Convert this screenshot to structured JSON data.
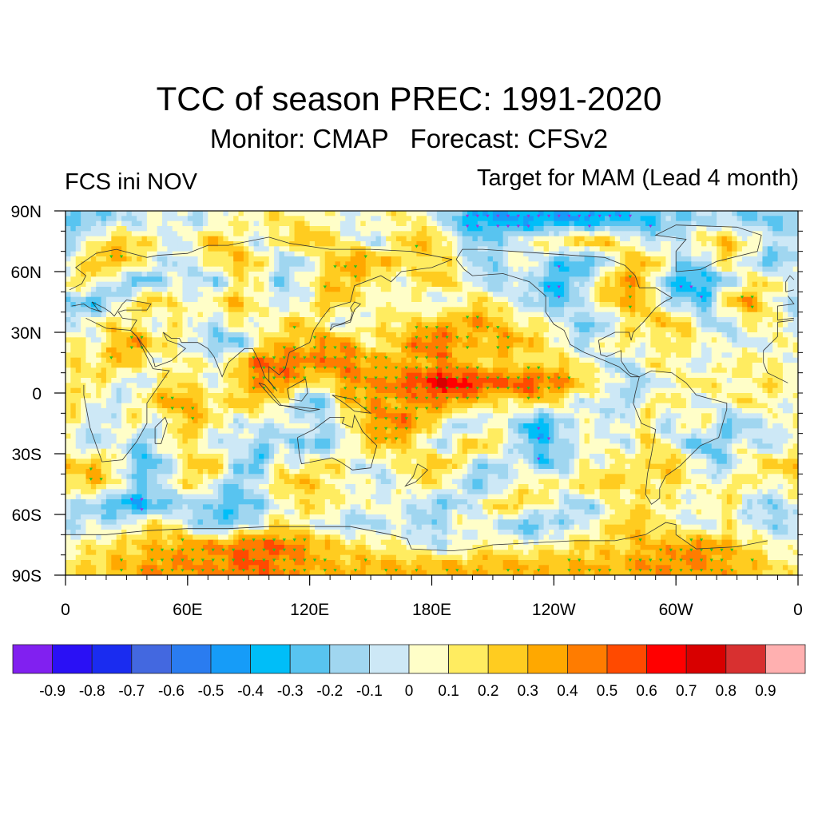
{
  "chart_data": {
    "type": "heatmap",
    "title": "TCC of season PREC: 1991-2020",
    "subtitle": {
      "monitor": "Monitor: CMAP",
      "forecast": "Forecast: CFSv2"
    },
    "left_string": "FCS ini NOV",
    "right_string": "Target for MAM (Lead 4 month)",
    "xlabel": "",
    "ylabel": "",
    "x_range_deg_east": [
      0,
      360
    ],
    "y_range_deg_lat": [
      -90,
      90
    ],
    "x_ticks": [
      {
        "value": 0,
        "label": "0"
      },
      {
        "value": 60,
        "label": "60E"
      },
      {
        "value": 120,
        "label": "120E"
      },
      {
        "value": 180,
        "label": "180E"
      },
      {
        "value": 240,
        "label": "120W"
      },
      {
        "value": 300,
        "label": "60W"
      },
      {
        "value": 360,
        "label": "0"
      }
    ],
    "y_ticks": [
      {
        "value": 90,
        "label": "90N"
      },
      {
        "value": 60,
        "label": "60N"
      },
      {
        "value": 30,
        "label": "30N"
      },
      {
        "value": 0,
        "label": "0"
      },
      {
        "value": -30,
        "label": "30S"
      },
      {
        "value": -60,
        "label": "60S"
      },
      {
        "value": -90,
        "label": "90S"
      }
    ],
    "minor_tick_step_deg": 10,
    "colorbar": {
      "orientation": "horizontal",
      "placement": "bottom",
      "levels": [
        -0.9,
        -0.8,
        -0.7,
        -0.6,
        -0.5,
        -0.4,
        -0.3,
        -0.2,
        -0.1,
        0,
        0.1,
        0.2,
        0.3,
        0.4,
        0.5,
        0.6,
        0.7,
        0.8,
        0.9
      ],
      "level_labels": [
        "-0.9",
        "-0.8",
        "-0.7",
        "-0.6",
        "-0.5",
        "-0.4",
        "-0.3",
        "-0.2",
        "-0.1",
        "0",
        "0.1",
        "0.2",
        "0.3",
        "0.4",
        "0.5",
        "0.6",
        "0.7",
        "0.8",
        "0.9"
      ],
      "colors": [
        "#8120f0",
        "#2a10f5",
        "#1a2cf0",
        "#4368e0",
        "#2a7cf0",
        "#169cf8",
        "#00bef8",
        "#58c4f0",
        "#a0d6f0",
        "#cde8f6",
        "#fffec8",
        "#ffec60",
        "#ffcc20",
        "#ffa800",
        "#ff7c00",
        "#ff4a00",
        "#ff0000",
        "#d80000",
        "#d83030",
        "#ffb0b0"
      ]
    },
    "significance_marker_colors": {
      "positive": "#1ec81e",
      "negative": "#a030e0"
    },
    "grid_resolution_deg": 10,
    "grid_lat_centers": [
      85,
      75,
      65,
      55,
      45,
      35,
      25,
      15,
      5,
      -5,
      -15,
      -25,
      -35,
      -45,
      -55,
      -65,
      -75,
      -85
    ],
    "grid_lon_centers_east": [
      5,
      15,
      25,
      35,
      45,
      55,
      65,
      75,
      85,
      95,
      105,
      115,
      125,
      135,
      145,
      155,
      165,
      175,
      185,
      195,
      205,
      215,
      225,
      235,
      245,
      255,
      265,
      275,
      285,
      295,
      305,
      315,
      325,
      335,
      345,
      355
    ],
    "values_tcc": [
      [
        -0.2,
        -0.2,
        -0.1,
        -0.1,
        0.0,
        0.0,
        -0.1,
        0.0,
        0.1,
        0.1,
        0.2,
        0.1,
        0.1,
        0.0,
        0.0,
        0.1,
        0.1,
        0.1,
        -0.1,
        -0.3,
        -0.4,
        -0.4,
        -0.4,
        -0.4,
        -0.4,
        -0.4,
        -0.4,
        -0.3,
        -0.3,
        -0.2,
        -0.2,
        -0.1,
        -0.1,
        -0.2,
        -0.2,
        -0.2
      ],
      [
        -0.1,
        0.1,
        0.3,
        0.2,
        0.1,
        -0.1,
        0.2,
        0.3,
        0.1,
        -0.1,
        0.1,
        0.3,
        0.3,
        0.1,
        0.0,
        -0.1,
        0.2,
        0.3,
        0.2,
        -0.1,
        -0.2,
        -0.1,
        0.0,
        0.1,
        0.2,
        0.3,
        0.3,
        0.1,
        -0.1,
        -0.1,
        0.0,
        0.2,
        0.3,
        0.1,
        0.0,
        -0.1
      ],
      [
        0.1,
        0.3,
        0.3,
        0.2,
        0.0,
        -0.1,
        0.0,
        0.2,
        0.3,
        0.2,
        -0.1,
        -0.2,
        0.1,
        0.3,
        0.4,
        0.3,
        0.2,
        0.1,
        0.2,
        0.0,
        -0.2,
        -0.1,
        0.1,
        -0.1,
        -0.3,
        -0.3,
        -0.2,
        0.2,
        0.3,
        0.1,
        -0.2,
        -0.1,
        0.2,
        0.0,
        -0.3,
        -0.2
      ],
      [
        0.2,
        0.1,
        -0.1,
        -0.3,
        -0.2,
        0.0,
        -0.1,
        -0.2,
        0.1,
        0.1,
        -0.2,
        0.0,
        0.2,
        0.3,
        0.2,
        0.1,
        0.0,
        0.2,
        0.3,
        0.1,
        -0.1,
        -0.2,
        0.0,
        -0.3,
        -0.3,
        -0.1,
        0.2,
        0.4,
        0.2,
        -0.2,
        -0.4,
        -0.3,
        -0.2,
        0.1,
        0.2,
        0.0
      ],
      [
        -0.2,
        -0.3,
        -0.1,
        0.2,
        0.3,
        0.1,
        0.0,
        0.2,
        0.3,
        0.1,
        0.0,
        -0.1,
        0.2,
        0.3,
        0.1,
        0.0,
        0.1,
        0.0,
        -0.1,
        0.1,
        0.2,
        0.1,
        -0.1,
        -0.2,
        -0.3,
        0.0,
        0.2,
        0.3,
        0.3,
        -0.1,
        -0.2,
        -0.3,
        0.3,
        0.4,
        0.1,
        -0.1
      ],
      [
        -0.1,
        0.1,
        0.2,
        0.1,
        -0.1,
        0.2,
        0.0,
        -0.1,
        0.2,
        0.0,
        0.1,
        0.3,
        0.1,
        -0.1,
        0.0,
        0.2,
        0.1,
        0.2,
        0.3,
        0.3,
        0.4,
        0.2,
        0.1,
        0.1,
        0.0,
        -0.2,
        -0.2,
        0.1,
        0.2,
        0.3,
        0.2,
        -0.1,
        -0.2,
        0.1,
        0.2,
        0.0
      ],
      [
        0.1,
        0.0,
        0.3,
        0.4,
        0.2,
        0.1,
        -0.1,
        -0.2,
        -0.3,
        0.1,
        0.3,
        0.2,
        0.4,
        0.4,
        0.2,
        0.1,
        0.3,
        0.5,
        0.5,
        0.3,
        0.2,
        0.4,
        0.3,
        0.2,
        0.0,
        -0.2,
        0.1,
        0.2,
        0.0,
        0.1,
        0.2,
        0.1,
        0.0,
        -0.1,
        0.0,
        0.1
      ],
      [
        0.2,
        0.1,
        0.3,
        0.2,
        0.0,
        0.1,
        0.1,
        0.0,
        0.3,
        0.5,
        0.5,
        0.5,
        0.4,
        0.5,
        0.4,
        0.3,
        0.3,
        0.3,
        0.4,
        0.3,
        0.2,
        0.2,
        0.1,
        0.2,
        0.2,
        0.1,
        -0.1,
        -0.2,
        0.1,
        0.2,
        0.0,
        -0.1,
        0.1,
        0.2,
        0.1,
        0.0
      ],
      [
        0.1,
        0.2,
        0.0,
        -0.1,
        0.1,
        0.2,
        0.1,
        0.0,
        0.2,
        0.4,
        0.4,
        0.3,
        0.1,
        0.3,
        0.4,
        0.4,
        0.5,
        0.6,
        0.7,
        0.7,
        0.6,
        0.5,
        0.6,
        0.5,
        0.4,
        0.2,
        0.1,
        -0.1,
        -0.2,
        0.0,
        0.1,
        0.2,
        0.1,
        0.0,
        0.2,
        0.1
      ],
      [
        0.2,
        0.0,
        -0.1,
        0.1,
        0.3,
        0.4,
        0.3,
        0.1,
        0.3,
        0.2,
        0.1,
        -0.2,
        -0.3,
        0.2,
        0.3,
        0.4,
        0.3,
        0.4,
        0.4,
        0.3,
        0.2,
        0.1,
        0.2,
        0.2,
        0.1,
        -0.1,
        0.0,
        -0.2,
        0.1,
        0.2,
        0.0,
        -0.1,
        0.1,
        0.2,
        0.1,
        0.0
      ],
      [
        0.1,
        -0.1,
        0.0,
        0.2,
        -0.2,
        0.2,
        0.3,
        0.1,
        -0.1,
        0.0,
        -0.1,
        0.1,
        -0.1,
        0.0,
        0.2,
        0.4,
        0.5,
        0.3,
        0.1,
        -0.2,
        -0.1,
        0.1,
        -0.3,
        -0.4,
        -0.1,
        0.1,
        -0.1,
        0.0,
        0.2,
        -0.2,
        0.1,
        0.2,
        -0.3,
        -0.2,
        0.0,
        0.1
      ],
      [
        0.0,
        -0.2,
        0.1,
        -0.3,
        0.0,
        0.2,
        0.1,
        -0.2,
        0.1,
        -0.2,
        -0.1,
        -0.2,
        -0.3,
        -0.1,
        0.2,
        0.3,
        0.2,
        0.1,
        -0.2,
        0.2,
        0.3,
        0.1,
        -0.2,
        -0.3,
        -0.1,
        0.0,
        0.1,
        -0.1,
        0.2,
        0.1,
        -0.2,
        -0.3,
        -0.1,
        0.1,
        -0.2,
        0.0
      ],
      [
        0.2,
        0.3,
        0.1,
        -0.2,
        -0.3,
        0.0,
        0.3,
        0.3,
        -0.2,
        -0.3,
        0.1,
        0.0,
        0.2,
        0.2,
        -0.1,
        0.0,
        0.1,
        0.2,
        0.3,
        0.1,
        -0.2,
        -0.1,
        0.0,
        -0.3,
        -0.2,
        0.1,
        0.0,
        0.2,
        0.1,
        0.3,
        0.2,
        -0.1,
        -0.2,
        0.1,
        0.2,
        0.3
      ],
      [
        0.2,
        0.3,
        0.1,
        -0.2,
        -0.1,
        0.1,
        0.2,
        -0.1,
        -0.2,
        0.0,
        0.2,
        0.3,
        0.2,
        0.0,
        0.1,
        -0.1,
        0.0,
        0.2,
        0.1,
        -0.1,
        -0.2,
        -0.1,
        0.1,
        0.2,
        0.1,
        0.2,
        0.3,
        0.2,
        0.1,
        0.2,
        0.1,
        0.0,
        0.1,
        0.2,
        0.0,
        0.1
      ],
      [
        -0.1,
        -0.2,
        -0.3,
        -0.4,
        -0.3,
        -0.2,
        -0.1,
        -0.2,
        -0.3,
        -0.2,
        0.0,
        0.1,
        0.2,
        0.1,
        0.0,
        0.1,
        0.0,
        -0.1,
        -0.2,
        -0.1,
        0.0,
        0.3,
        0.2,
        0.1,
        -0.1,
        -0.2,
        0.0,
        0.1,
        0.2,
        0.1,
        0.0,
        0.1,
        0.2,
        -0.1,
        -0.2,
        0.0
      ],
      [
        -0.1,
        0.0,
        -0.1,
        0.1,
        0.2,
        0.1,
        -0.2,
        -0.3,
        -0.1,
        0.0,
        0.2,
        0.1,
        0.0,
        -0.1,
        -0.2,
        -0.1,
        0.0,
        -0.2,
        -0.1,
        0.1,
        0.0,
        -0.1,
        -0.3,
        -0.2,
        -0.1,
        0.0,
        0.1,
        0.3,
        0.2,
        0.1,
        0.0,
        -0.1,
        0.1,
        0.0,
        -0.1,
        -0.2
      ],
      [
        0.1,
        0.1,
        0.2,
        0.2,
        0.3,
        0.3,
        0.4,
        0.4,
        0.5,
        0.5,
        0.5,
        0.4,
        0.3,
        0.2,
        0.2,
        0.1,
        0.1,
        0.0,
        -0.1,
        0.0,
        0.1,
        0.1,
        0.0,
        0.1,
        0.1,
        0.2,
        0.2,
        0.2,
        0.3,
        0.3,
        0.4,
        0.4,
        0.3,
        0.2,
        0.1,
        0.0
      ],
      [
        0.2,
        0.2,
        0.3,
        0.3,
        0.4,
        0.4,
        0.4,
        0.4,
        0.5,
        0.5,
        0.4,
        0.4,
        0.3,
        0.3,
        0.3,
        0.3,
        0.3,
        0.3,
        0.3,
        0.3,
        0.3,
        0.3,
        0.3,
        0.3,
        0.3,
        0.3,
        0.3,
        0.3,
        0.4,
        0.4,
        0.4,
        0.4,
        0.3,
        0.3,
        0.2,
        0.1
      ]
    ],
    "significance_threshold": 0.3,
    "legend": "colorbar-bottom",
    "grid": false
  }
}
